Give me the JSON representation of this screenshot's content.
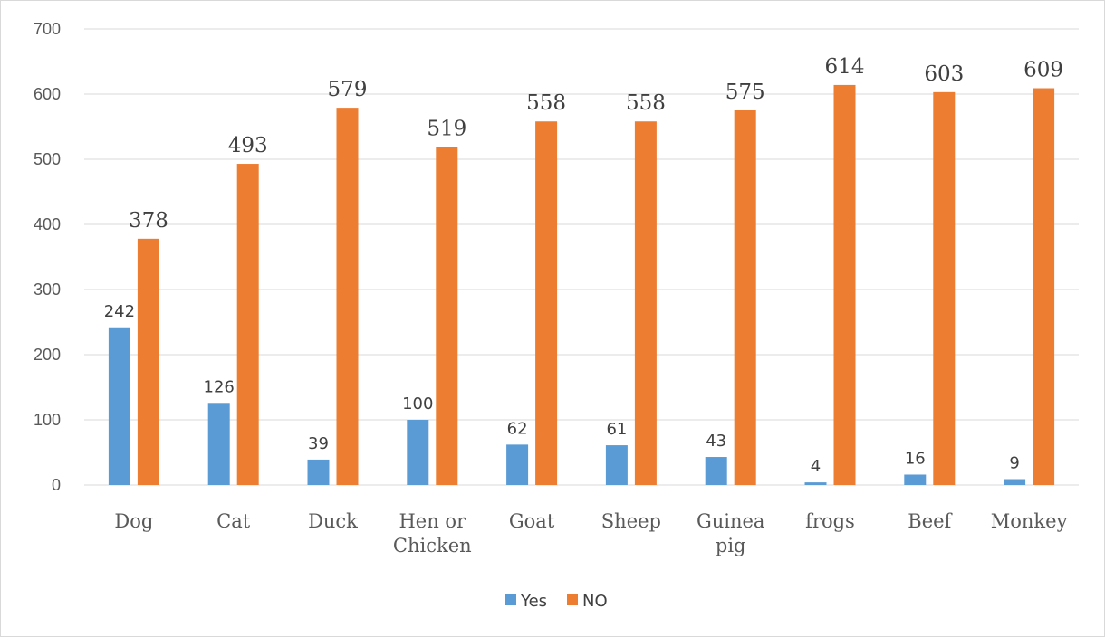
{
  "chart_data": {
    "type": "bar",
    "title": "",
    "xlabel": "",
    "ylabel": "",
    "ylim": [
      0,
      700
    ],
    "yticks": [
      0,
      100,
      200,
      300,
      400,
      500,
      600,
      700
    ],
    "grid": true,
    "legend_position": "bottom",
    "categories": [
      [
        "Dog"
      ],
      [
        "Cat"
      ],
      [
        "Duck"
      ],
      [
        "Hen or",
        "Chicken"
      ],
      [
        "Goat"
      ],
      [
        "Sheep"
      ],
      [
        "Guinea",
        "pig"
      ],
      [
        "frogs"
      ],
      [
        "Beef"
      ],
      [
        "Monkey"
      ]
    ],
    "series": [
      {
        "name": "Yes",
        "color": "#5b9bd5",
        "values": [
          242,
          126,
          39,
          100,
          62,
          61,
          43,
          4,
          16,
          9
        ]
      },
      {
        "name": "NO",
        "color": "#ed7d31",
        "values": [
          378,
          493,
          579,
          519,
          558,
          558,
          575,
          614,
          603,
          609
        ]
      }
    ]
  }
}
